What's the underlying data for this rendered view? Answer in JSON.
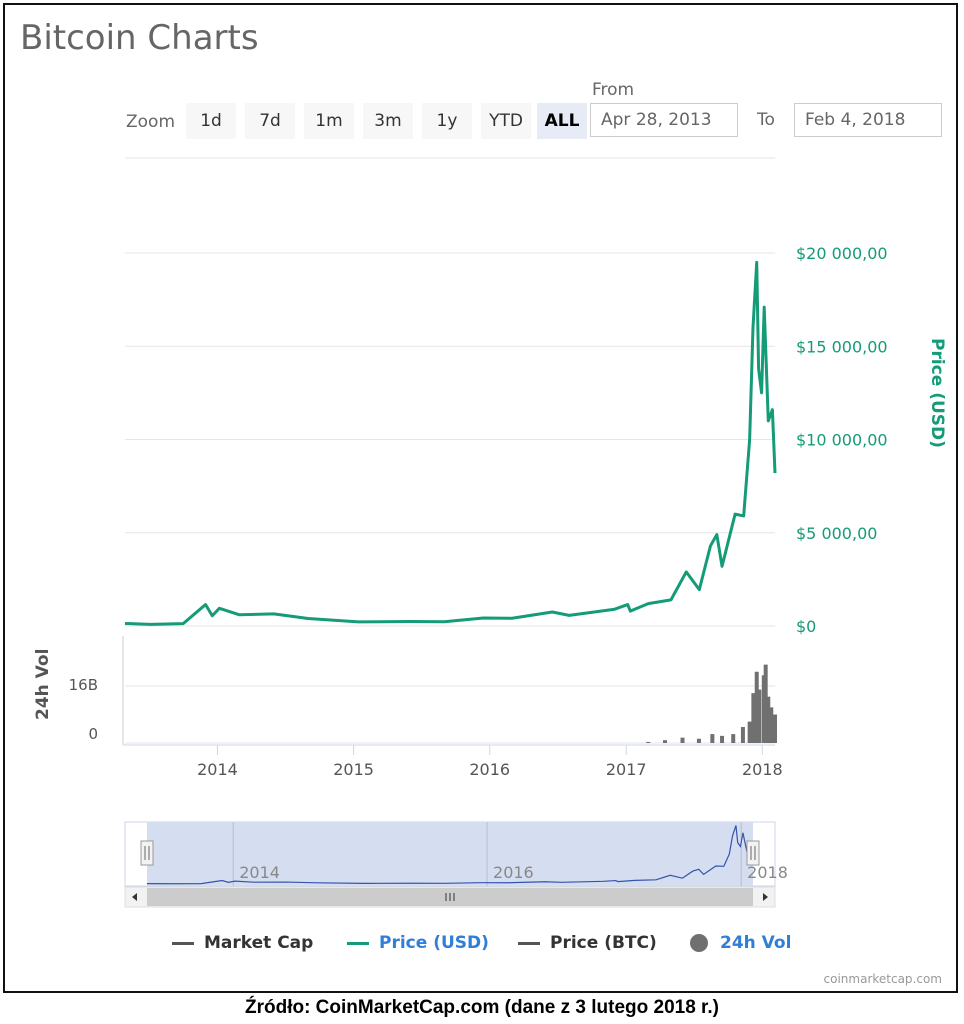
{
  "header": {
    "title": "Bitcoin Charts"
  },
  "toolbar": {
    "zoom_label": "Zoom",
    "buttons": [
      "1d",
      "7d",
      "1m",
      "3m",
      "1y",
      "YTD",
      "ALL"
    ],
    "active": "ALL",
    "from_label": "From",
    "from_value": "Apr 28, 2013",
    "to_label": "To",
    "to_value": "Feb 4, 2018"
  },
  "colors": {
    "price": "#149b77",
    "volume": "#707070",
    "navigator_fill": "#d5def0",
    "navigator_line": "#3355aa"
  },
  "chart_data": {
    "type": "line",
    "title": "",
    "y_price": {
      "label": "Price (USD)",
      "ticks": [
        "$0",
        "$5 000,00",
        "$10 000,00",
        "$15 000,00",
        "$20 000,00"
      ],
      "tick_values": [
        0,
        5000,
        10000,
        15000,
        20000
      ],
      "range": [
        0,
        20000
      ]
    },
    "y_volume": {
      "label": "24h Vol",
      "ticks": [
        "0",
        "16B"
      ],
      "tick_values": [
        0,
        16
      ],
      "range": [
        0,
        16
      ]
    },
    "x_ticks": [
      "2014",
      "2015",
      "2016",
      "2017",
      "2018"
    ],
    "x_range": [
      "2013-04-28",
      "2018-02-04"
    ],
    "series": [
      {
        "name": "Price (USD)",
        "x": [
          "2013-04-28",
          "2013-07-05",
          "2013-10-01",
          "2013-11-30",
          "2013-12-18",
          "2014-01-06",
          "2014-03-01",
          "2014-06-01",
          "2014-09-01",
          "2015-01-14",
          "2015-06-01",
          "2015-09-01",
          "2015-12-15",
          "2016-03-01",
          "2016-06-17",
          "2016-08-01",
          "2016-12-01",
          "2017-01-05",
          "2017-01-12",
          "2017-03-01",
          "2017-05-01",
          "2017-06-11",
          "2017-07-16",
          "2017-08-15",
          "2017-09-01",
          "2017-09-15",
          "2017-10-20",
          "2017-11-12",
          "2017-11-28",
          "2017-12-07",
          "2017-12-17",
          "2017-12-22",
          "2017-12-30",
          "2018-01-06",
          "2018-01-17",
          "2018-01-28",
          "2018-02-04"
        ],
        "y": [
          135,
          90,
          125,
          1150,
          550,
          950,
          600,
          650,
          400,
          220,
          240,
          230,
          430,
          415,
          750,
          570,
          900,
          1150,
          800,
          1200,
          1400,
          2900,
          1950,
          4300,
          4900,
          3200,
          6000,
          5900,
          10000,
          16000,
          19500,
          13800,
          12500,
          17100,
          11000,
          11600,
          8200
        ]
      },
      {
        "name": "24h Vol",
        "unit": "B",
        "x": [
          "2017-03-01",
          "2017-04-15",
          "2017-06-01",
          "2017-07-15",
          "2017-08-20",
          "2017-09-15",
          "2017-10-15",
          "2017-11-10",
          "2017-11-28",
          "2017-12-08",
          "2017-12-17",
          "2017-12-24",
          "2018-01-05",
          "2018-01-10",
          "2018-01-17",
          "2018-01-25",
          "2018-02-04"
        ],
        "y": [
          0.3,
          0.8,
          1.5,
          1.2,
          2.5,
          2.0,
          2.5,
          4.5,
          6,
          14,
          20,
          15,
          19,
          22,
          13,
          10,
          8
        ]
      }
    ],
    "navigator": {
      "ticks": [
        "2014",
        "2016",
        "2018"
      ]
    },
    "legend": {
      "items": [
        "Market Cap",
        "Price (USD)",
        "Price (BTC)",
        "24h Vol"
      ],
      "placement": "bottom"
    }
  },
  "footer": {
    "credit": "coinmarketcap.com",
    "caption": "Źródło: CoinMarketCap.com (dane z 3 lutego 2018 r.)"
  }
}
